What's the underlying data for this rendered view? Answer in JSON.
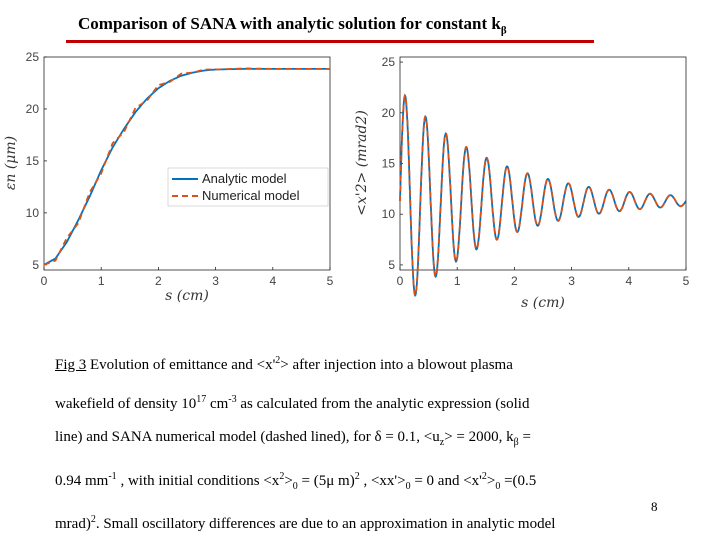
{
  "slide": {
    "title": "Comparison of  SANA with analytic solution for constant k",
    "title_sub": "β",
    "page_number": "8"
  },
  "caption": {
    "fig_label": "Fig 3",
    "line1_rest": " Evolution of emittance and <x'",
    "line1_sup": "2",
    "line1_end": "> after injection into a blowout plasma",
    "line2_a": "wakefield of density 10",
    "line2_sup": "17",
    "line2_b": " cm",
    "line2_sup2": "-3",
    "line2_c": " as calculated from the analytic expression (solid",
    "line3": "line) and SANA numerical model (dashed lined), for δ = 0.1, <u",
    "line3_sub": "z",
    "line3_end": "> = 2000, k",
    "line3_sub2": "β",
    "line3_tail": " =",
    "line4_a": "0.94 mm",
    "line4_sup": "-1",
    "line4_b": " , with initial conditions <x",
    "line4_sup2": "2",
    "line4_c": ">",
    "line4_sub": "0",
    "line4_d": " = (5μ m)",
    "line4_sup3": "2",
    "line4_e": " , <xx'>",
    "line4_sub2": "0",
    "line4_f": " = 0  and <x'",
    "line4_sup4": "2",
    "line4_g": ">",
    "line4_sub3": "0",
    "line4_h": " =(0.5",
    "line5_a": "mrad)",
    "line5_sup": "2",
    "line5_b": ". Small oscillatory differences are due to an approximation in analytic model"
  },
  "colors": {
    "analytic": "#0072bd",
    "numerical": "#d95319",
    "title_rule": "#c00000"
  },
  "chart_data": [
    {
      "type": "line",
      "xlabel": "s (cm)",
      "ylabel": "εn (μm)",
      "xlim": [
        0,
        5
      ],
      "ylim": [
        4.5,
        25
      ],
      "xticks": [
        "0",
        "1",
        "2",
        "3",
        "4",
        "5"
      ],
      "yticks": [
        "5",
        "10",
        "15",
        "20",
        "25"
      ],
      "legend": {
        "placement": "center-right",
        "entries": [
          "Analytic model",
          "Numerical model"
        ]
      },
      "series": [
        {
          "name": "Analytic model",
          "style": "solid",
          "color": "#0072bd",
          "x": [
            0,
            0.2,
            0.4,
            0.6,
            0.8,
            1.0,
            1.2,
            1.4,
            1.6,
            1.8,
            2.0,
            2.2,
            2.4,
            2.6,
            2.8,
            3.0,
            3.5,
            4.0,
            4.5,
            5.0
          ],
          "y": [
            5.0,
            5.6,
            7.2,
            9.3,
            11.6,
            14.1,
            16.3,
            18.1,
            19.7,
            21.0,
            22.0,
            22.7,
            23.2,
            23.5,
            23.7,
            23.8,
            23.85,
            23.85,
            23.85,
            23.85
          ]
        },
        {
          "name": "Numerical model",
          "style": "dashed",
          "color": "#d95319",
          "x": [
            0,
            0.2,
            0.4,
            0.6,
            0.8,
            1.0,
            1.2,
            1.4,
            1.6,
            1.8,
            2.0,
            2.2,
            2.4,
            2.6,
            2.8,
            3.0,
            3.5,
            4.0,
            4.5,
            5.0
          ],
          "y": [
            5.0,
            5.4,
            7.6,
            9.0,
            12.0,
            13.8,
            16.7,
            17.8,
            20.1,
            20.8,
            22.3,
            22.6,
            23.4,
            23.5,
            23.8,
            23.8,
            23.9,
            23.85,
            23.85,
            23.85
          ]
        }
      ]
    },
    {
      "type": "line",
      "xlabel": "s (cm)",
      "ylabel": "<x'2> (mrad2)",
      "xlim": [
        0,
        5
      ],
      "ylim": [
        4.5,
        25.5
      ],
      "xticks": [
        "0",
        "1",
        "2",
        "3",
        "4",
        "5"
      ],
      "yticks": [
        "5",
        "10",
        "15",
        "20",
        "25"
      ],
      "series": [
        {
          "name": "Analytic model",
          "style": "solid",
          "color": "#0072bd",
          "model": {
            "mean": 11.3,
            "amplitude": 11.0,
            "period": 0.357,
            "decay_cm": 1.6,
            "x_start": 0,
            "x_end": 5
          }
        },
        {
          "name": "Numerical model",
          "style": "dashed",
          "color": "#d95319",
          "model": {
            "mean": 11.3,
            "amplitude": 11.0,
            "period": 0.357,
            "decay_cm": 1.6,
            "x_start": 0,
            "x_end": 5
          }
        }
      ]
    }
  ]
}
